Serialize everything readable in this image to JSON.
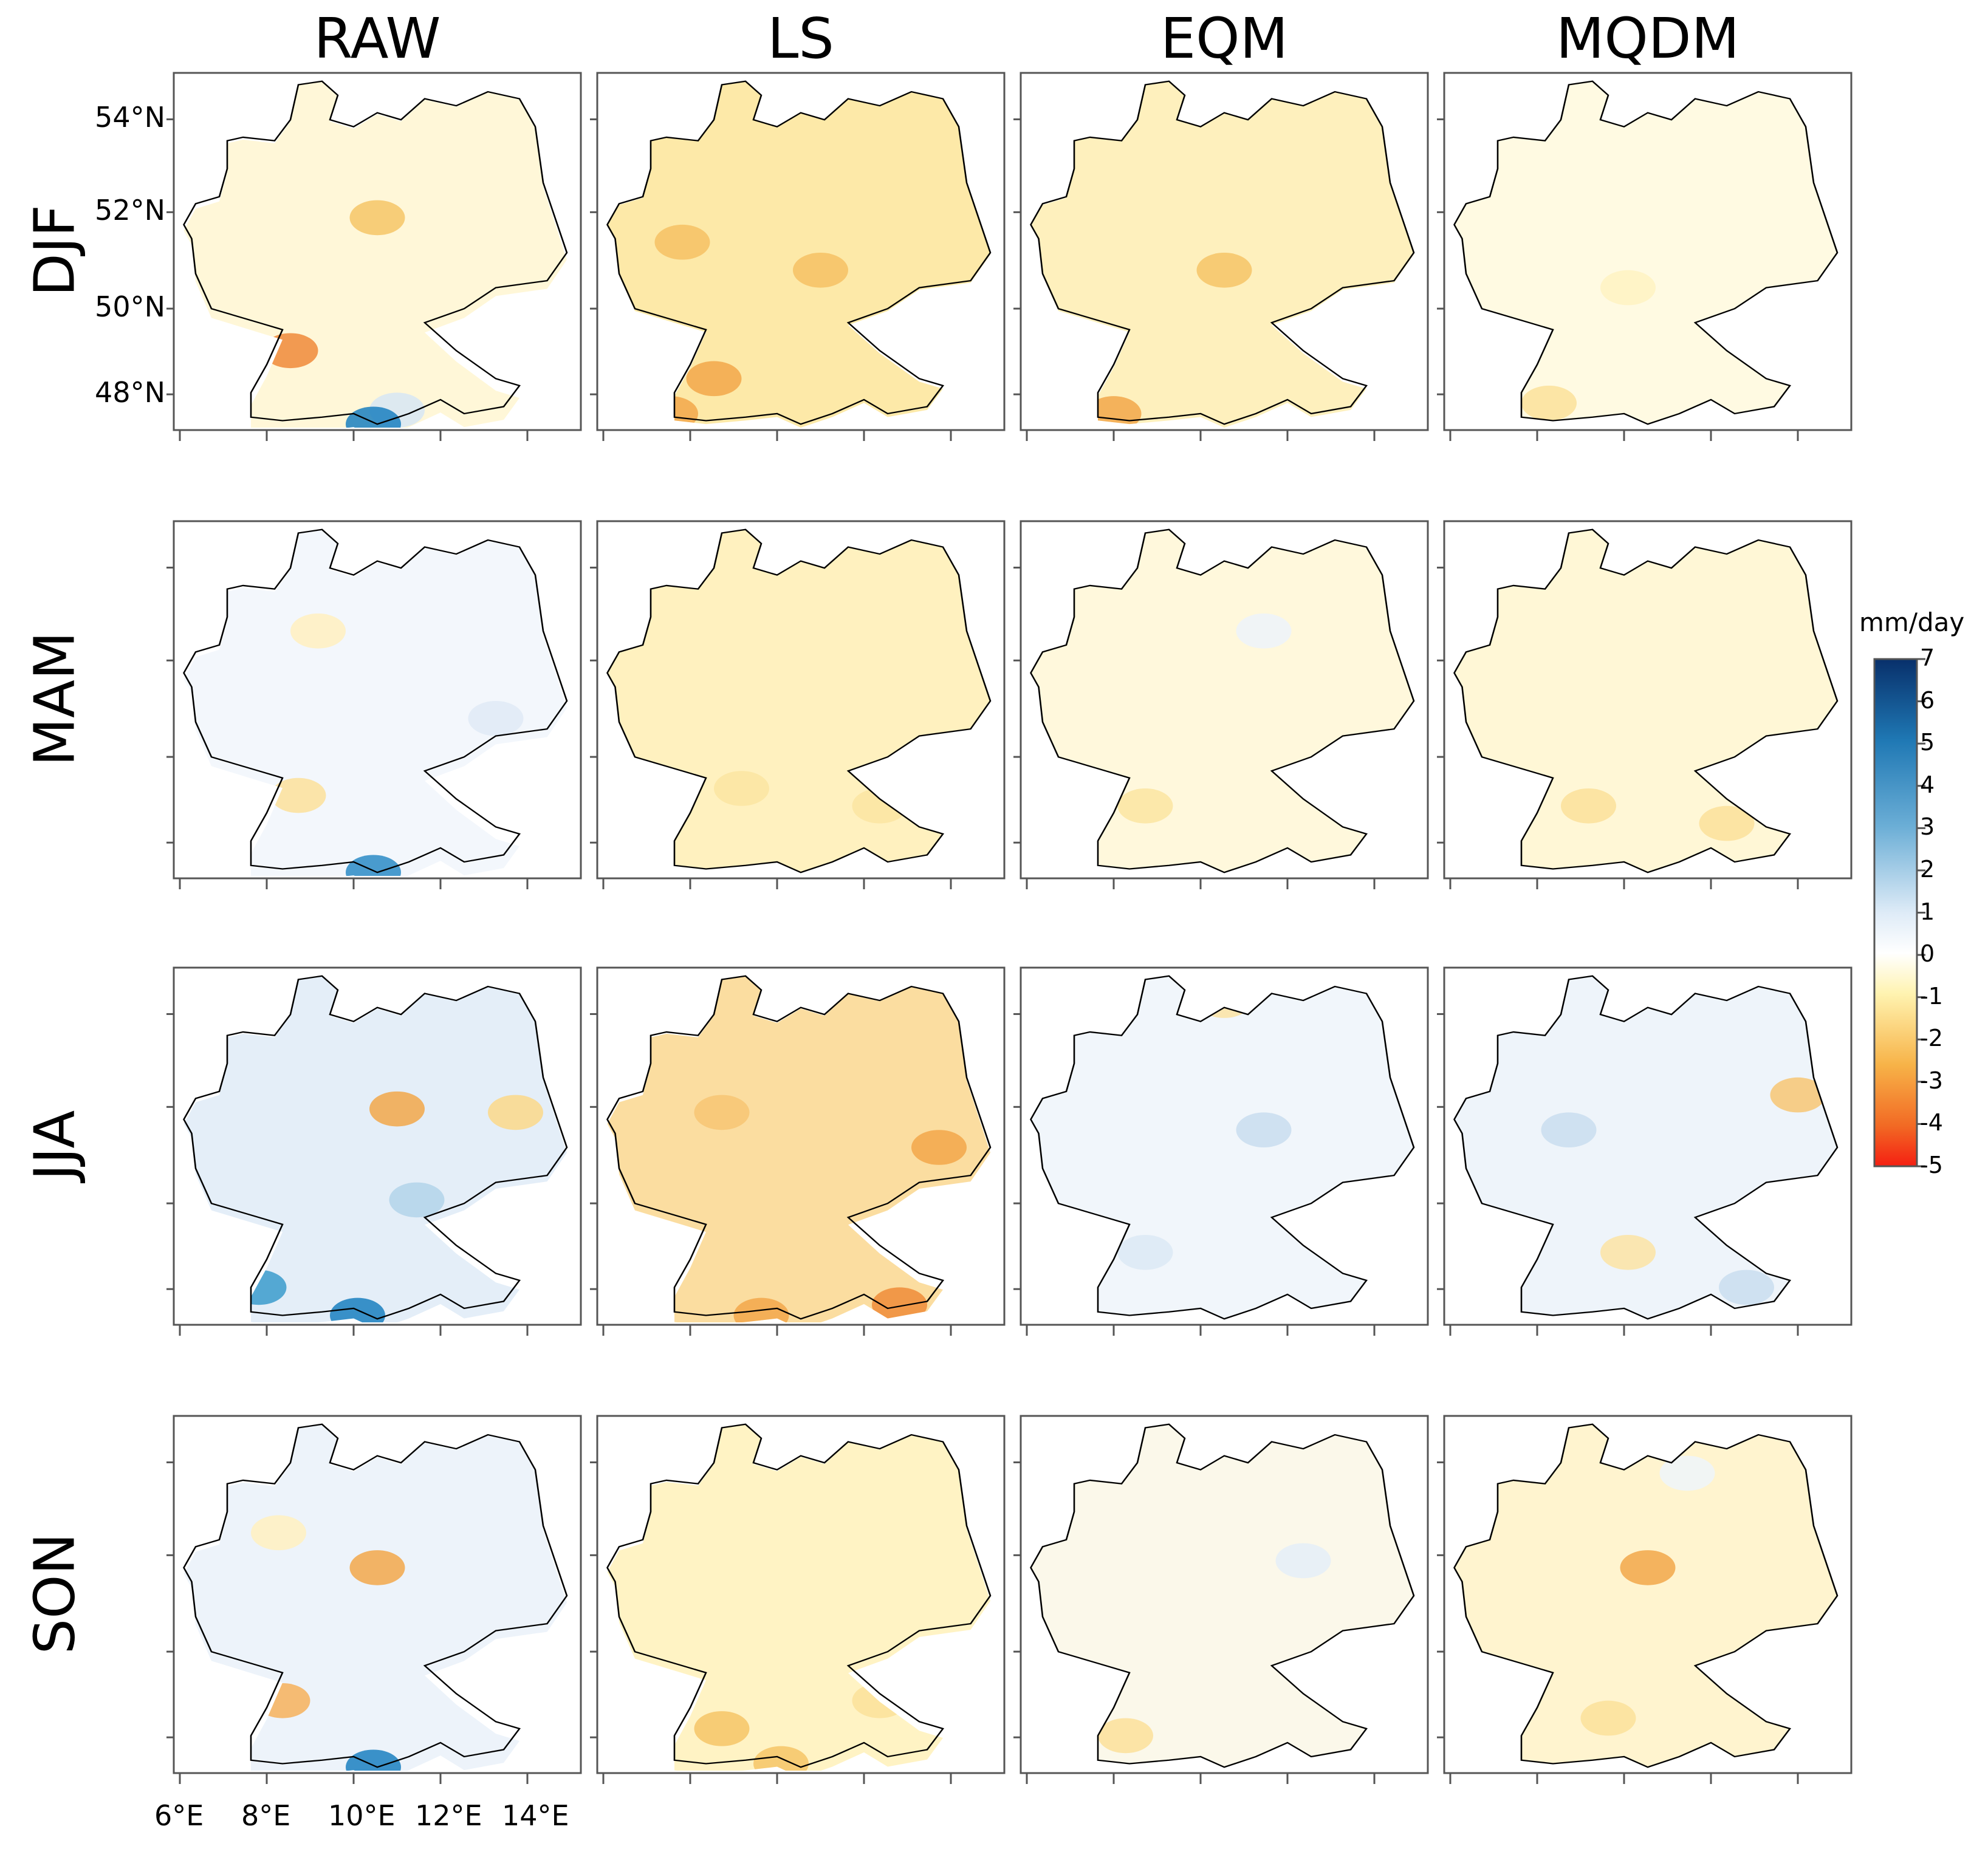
{
  "figure": {
    "columns": [
      "RAW",
      "LS",
      "EQM",
      "MQDM"
    ],
    "rows": [
      "DJF",
      "MAM",
      "JJA",
      "SON"
    ],
    "lat_ticks": [
      "54°N",
      "52°N",
      "50°N",
      "48°N"
    ],
    "lon_ticks": [
      "6°E",
      "8°E",
      "10°E",
      "12°E",
      "14°E"
    ],
    "colorbar": {
      "title": "mm/day",
      "ticks": [
        "7",
        "6",
        "5",
        "4",
        "3",
        "2",
        "1",
        "0",
        "-1",
        "-2",
        "-3",
        "-4",
        "-5"
      ],
      "range": [
        -5,
        7
      ],
      "colors": {
        "dark_blue": "#08519c",
        "mid_blue": "#3a9ccc",
        "light_blue": "#c6dcef",
        "white": "#ffffff",
        "light_yellow": "#fff3b0",
        "orange": "#f7a53c",
        "red": "#f41f12"
      }
    },
    "panels": [
      {
        "row": "DJF",
        "col": "RAW",
        "base": "#fff7d8",
        "spots": [
          [
            "#f6c667",
            0.5,
            0.4
          ],
          [
            "#f08a3a",
            0.28,
            0.78
          ],
          [
            "#d7e6f4",
            0.55,
            0.95
          ],
          [
            "#1a7fc0",
            0.49,
            0.99
          ]
        ]
      },
      {
        "row": "DJF",
        "col": "LS",
        "base": "#fde9a8",
        "spots": [
          [
            "#f6c164",
            0.2,
            0.47
          ],
          [
            "#f2a74a",
            0.28,
            0.86
          ],
          [
            "#f2a74a",
            0.17,
            0.96
          ],
          [
            "#f6c164",
            0.55,
            0.55
          ]
        ]
      },
      {
        "row": "DJF",
        "col": "EQM",
        "base": "#fef0bd",
        "spots": [
          [
            "#f6c467",
            0.5,
            0.55
          ],
          [
            "#f2a74a",
            0.22,
            0.96
          ],
          [
            "#f6c467",
            0.8,
            0.75
          ]
        ]
      },
      {
        "row": "DJF",
        "col": "MQDM",
        "base": "#fffae2",
        "spots": [
          [
            "#fbe19a",
            0.25,
            0.93
          ],
          [
            "#fff2c2",
            0.45,
            0.6
          ]
        ]
      },
      {
        "row": "MAM",
        "col": "RAW",
        "base": "#f3f7fc",
        "spots": [
          [
            "#fff0c0",
            0.35,
            0.3
          ],
          [
            "#fbe19a",
            0.3,
            0.77
          ],
          [
            "#2a8bc6",
            0.49,
            0.99
          ],
          [
            "#dfeaf6",
            0.8,
            0.55
          ]
        ]
      },
      {
        "row": "MAM",
        "col": "LS",
        "base": "#fff1bf",
        "spots": [
          [
            "#fbe5a1",
            0.35,
            0.75
          ],
          [
            "#fbe5a1",
            0.7,
            0.8
          ]
        ]
      },
      {
        "row": "MAM",
        "col": "EQM",
        "base": "#fff8dc",
        "spots": [
          [
            "#fbe5a1",
            0.3,
            0.8
          ],
          [
            "#edf3fa",
            0.6,
            0.3
          ]
        ]
      },
      {
        "row": "MAM",
        "col": "MQDM",
        "base": "#fff7d6",
        "spots": [
          [
            "#fbe19a",
            0.35,
            0.8
          ],
          [
            "#fbe19a",
            0.7,
            0.85
          ]
        ]
      },
      {
        "row": "JJA",
        "col": "RAW",
        "base": "#e4eef8",
        "spots": [
          [
            "#f2a74a",
            0.55,
            0.39
          ],
          [
            "#fbd88a",
            0.85,
            0.4
          ],
          [
            "#3b9bcc",
            0.2,
            0.9
          ],
          [
            "#1a7fc0",
            0.45,
            0.98
          ],
          [
            "#b3d3ea",
            0.6,
            0.65
          ]
        ]
      },
      {
        "row": "JJA",
        "col": "LS",
        "base": "#fbdda0",
        "spots": [
          [
            "#f2a74a",
            0.85,
            0.5
          ],
          [
            "#ef8c38",
            0.75,
            0.95
          ],
          [
            "#f2a74a",
            0.4,
            0.98
          ],
          [
            "#f7c673",
            0.3,
            0.4
          ]
        ]
      },
      {
        "row": "JJA",
        "col": "EQM",
        "base": "#f1f6fb",
        "spots": [
          [
            "#fce3a3",
            0.5,
            0.08
          ],
          [
            "#c9ddef",
            0.6,
            0.45
          ],
          [
            "#dce9f5",
            0.3,
            0.8
          ]
        ]
      },
      {
        "row": "JJA",
        "col": "MQDM",
        "base": "#eef4fa",
        "spots": [
          [
            "#f7c673",
            0.88,
            0.35
          ],
          [
            "#c9ddef",
            0.3,
            0.45
          ],
          [
            "#c9ddef",
            0.75,
            0.9
          ],
          [
            "#fce3a3",
            0.45,
            0.8
          ]
        ]
      },
      {
        "row": "SON",
        "col": "RAW",
        "base": "#edf3fa",
        "spots": [
          [
            "#f2a74a",
            0.5,
            0.42
          ],
          [
            "#f6b05a",
            0.26,
            0.8
          ],
          [
            "#1a7fc0",
            0.49,
            0.99
          ],
          [
            "#fff0c0",
            0.25,
            0.32
          ]
        ]
      },
      {
        "row": "SON",
        "col": "LS",
        "base": "#fff3c4",
        "spots": [
          [
            "#f6c467",
            0.3,
            0.88
          ],
          [
            "#f6c467",
            0.45,
            0.98
          ],
          [
            "#fbe19a",
            0.7,
            0.8
          ]
        ]
      },
      {
        "row": "SON",
        "col": "EQM",
        "base": "#fbf8ea",
        "spots": [
          [
            "#fbe19a",
            0.25,
            0.9
          ],
          [
            "#e4eef8",
            0.7,
            0.4
          ]
        ]
      },
      {
        "row": "SON",
        "col": "MQDM",
        "base": "#fff4cf",
        "spots": [
          [
            "#f2a74a",
            0.5,
            0.42
          ],
          [
            "#fbe19a",
            0.4,
            0.85
          ],
          [
            "#eef4fa",
            0.6,
            0.15
          ]
        ]
      }
    ]
  }
}
